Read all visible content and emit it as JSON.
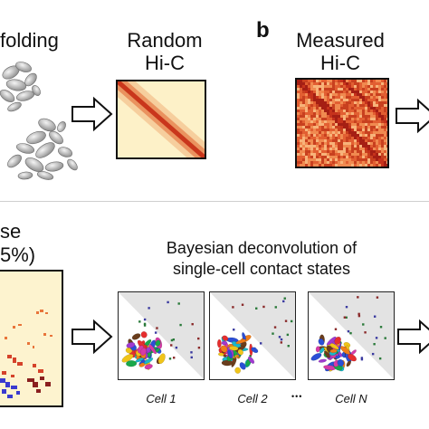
{
  "panel_a": {
    "title_fragment": "folding"
  },
  "random_hic": {
    "title_line1": "Random",
    "title_line2": "Hi-C"
  },
  "panel_b": {
    "letter": "b",
    "title_line1": "Measured",
    "title_line2": "Hi-C"
  },
  "lower_left": {
    "text_line1": "se",
    "text_line2": "5%)"
  },
  "bayes": {
    "title_line1": "Bayesian deconvolution of",
    "title_line2": "single-cell contact states"
  },
  "cells": [
    {
      "label": "Cell 1"
    },
    {
      "label": "Cell 2"
    },
    {
      "label": "Cell N"
    }
  ],
  "ellipsis": "•••",
  "colors": {
    "heatmap_bg": "#fdf0c4",
    "diagonal": "#c9361c",
    "measured_bg": "#e8693a"
  }
}
